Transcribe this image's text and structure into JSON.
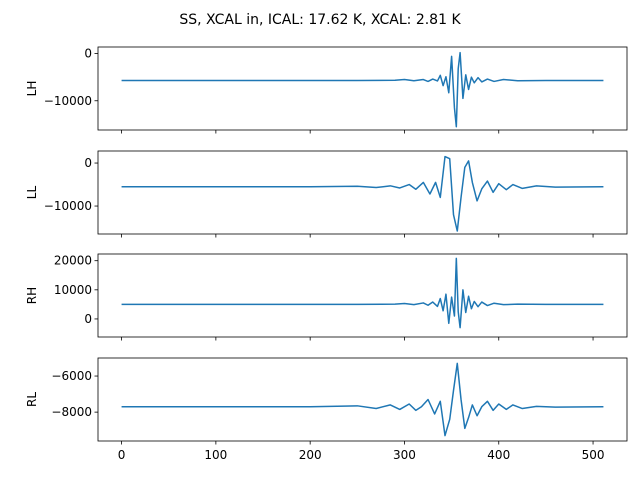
{
  "figure": {
    "title": "SS, XCAL in, ICAL: 17.62 K, XCAL: 2.81 K",
    "line_color": "#1f77b4"
  },
  "chart_data": [
    {
      "type": "line",
      "ylabel": "LH",
      "xlim": [
        -25,
        536
      ],
      "ylim": [
        -16200,
        1400
      ],
      "xticks": [
        0,
        100,
        200,
        300,
        400,
        500
      ],
      "yticks": [
        -10000,
        0
      ],
      "ytick_labels": [
        "−10000",
        "0"
      ],
      "series": [
        {
          "x": [
            0,
            250,
            290,
            300,
            310,
            320,
            325,
            330,
            335,
            338,
            341,
            344,
            347,
            350,
            353,
            355,
            357,
            359,
            362,
            365,
            368,
            371,
            374,
            378,
            382,
            388,
            395,
            405,
            420,
            450,
            511
          ],
          "values": [
            -5700,
            -5700,
            -5650,
            -5500,
            -5750,
            -5500,
            -5900,
            -5400,
            -5800,
            -4600,
            -6800,
            -4900,
            -8300,
            -600,
            -11500,
            -15500,
            -3200,
            200,
            -9500,
            -4500,
            -7600,
            -5000,
            -6200,
            -5100,
            -6000,
            -5400,
            -5900,
            -5500,
            -5750,
            -5700,
            -5700
          ]
        }
      ]
    },
    {
      "type": "line",
      "ylabel": "LL",
      "xlim": [
        -25,
        536
      ],
      "ylim": [
        -16500,
        2800
      ],
      "xticks": [
        0,
        100,
        200,
        300,
        400,
        500
      ],
      "yticks": [
        -10000,
        0
      ],
      "ytick_labels": [
        "−10000",
        "0"
      ],
      "series": [
        {
          "x": [
            0,
            200,
            250,
            270,
            285,
            295,
            305,
            312,
            320,
            327,
            333,
            338,
            343,
            348,
            352,
            356,
            360,
            364,
            368,
            372,
            377,
            382,
            388,
            394,
            400,
            408,
            415,
            425,
            440,
            460,
            511
          ],
          "values": [
            -5500,
            -5500,
            -5400,
            -5700,
            -5300,
            -5800,
            -5000,
            -6100,
            -4500,
            -7200,
            -4500,
            -8000,
            1500,
            1000,
            -12000,
            -15800,
            -8000,
            -1000,
            500,
            -4500,
            -8800,
            -6000,
            -4200,
            -6800,
            -4800,
            -6200,
            -5000,
            -5900,
            -5300,
            -5600,
            -5500
          ]
        }
      ]
    },
    {
      "type": "line",
      "ylabel": "RH",
      "xlim": [
        -25,
        536
      ],
      "ylim": [
        -6200,
        22300
      ],
      "xticks": [
        0,
        100,
        200,
        300,
        400,
        500
      ],
      "yticks": [
        0,
        10000,
        20000
      ],
      "ytick_labels": [
        "0",
        "10000",
        "20000"
      ],
      "series": [
        {
          "x": [
            0,
            250,
            290,
            300,
            310,
            320,
            325,
            330,
            335,
            338,
            341,
            344,
            347,
            350,
            353,
            355,
            357,
            359,
            362,
            365,
            368,
            371,
            374,
            378,
            382,
            388,
            395,
            405,
            420,
            450,
            511
          ],
          "values": [
            5000,
            5000,
            5100,
            5300,
            4900,
            5500,
            4700,
            5800,
            4300,
            7000,
            2800,
            8500,
            -1500,
            7500,
            1000,
            20800,
            2500,
            -3000,
            10000,
            2200,
            7800,
            3500,
            6000,
            4200,
            5800,
            4600,
            5400,
            4900,
            5100,
            5000,
            5000
          ]
        }
      ]
    },
    {
      "type": "line",
      "ylabel": "RL",
      "xlim": [
        -25,
        536
      ],
      "ylim": [
        -9600,
        -5000
      ],
      "xticks": [
        0,
        100,
        200,
        300,
        400,
        500
      ],
      "xtick_labels": [
        "0",
        "100",
        "200",
        "300",
        "400",
        "500"
      ],
      "yticks": [
        -8000,
        -6000
      ],
      "ytick_labels": [
        "−8000",
        "−6000"
      ],
      "series": [
        {
          "x": [
            0,
            200,
            250,
            270,
            285,
            295,
            305,
            312,
            318,
            325,
            332,
            338,
            343,
            348,
            352,
            356,
            360,
            364,
            368,
            372,
            377,
            382,
            388,
            394,
            400,
            408,
            415,
            425,
            440,
            460,
            511
          ],
          "values": [
            -7700,
            -7700,
            -7650,
            -7800,
            -7600,
            -7850,
            -7550,
            -7900,
            -7700,
            -7300,
            -8100,
            -7400,
            -9300,
            -8400,
            -6800,
            -5300,
            -7300,
            -8900,
            -8300,
            -7600,
            -8200,
            -7700,
            -7400,
            -7900,
            -7550,
            -7850,
            -7600,
            -7800,
            -7680,
            -7720,
            -7700
          ]
        }
      ]
    }
  ]
}
